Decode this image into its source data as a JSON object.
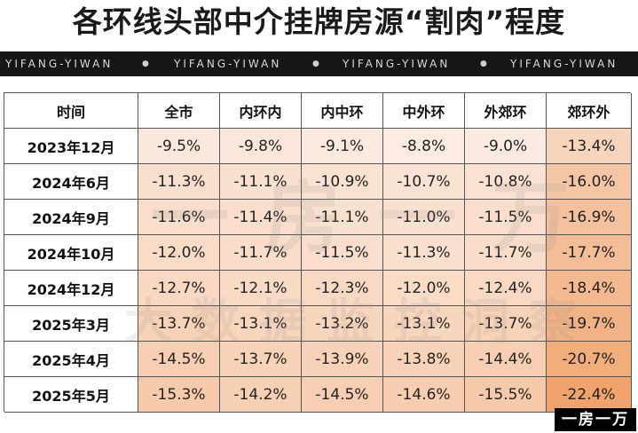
{
  "title": "各环线头部中介挂牌房源“割肉”程度",
  "band_text": "YIFANG-YIWAN",
  "watermark": {
    "line1": "一房一万",
    "line2": "大数据监控洞察"
  },
  "logo_text": "一房一万",
  "colors": {
    "light": "#fcece2",
    "dark": "#f0a46c",
    "outer": "#ee9556"
  },
  "chart_data": {
    "type": "table",
    "title": "各环线头部中介挂牌房源“割肉”程度",
    "corner_label": "时间",
    "columns": [
      "全市",
      "内环内",
      "内中环",
      "中外环",
      "外郊环",
      "郊环外"
    ],
    "rows": [
      {
        "label": "2023年12月",
        "values": [
          "-9.5%",
          "-9.8%",
          "-9.1%",
          "-8.8%",
          "-9.0%",
          "-13.4%"
        ]
      },
      {
        "label": "2024年6月",
        "values": [
          "-11.3%",
          "-11.1%",
          "-10.9%",
          "-10.7%",
          "-10.8%",
          "-16.0%"
        ]
      },
      {
        "label": "2024年9月",
        "values": [
          "-11.6%",
          "-11.4%",
          "-11.1%",
          "-11.0%",
          "-11.5%",
          "-16.9%"
        ]
      },
      {
        "label": "2024年10月",
        "values": [
          "-12.0%",
          "-11.7%",
          "-11.5%",
          "-11.3%",
          "-11.7%",
          "-17.7%"
        ]
      },
      {
        "label": "2024年12月",
        "values": [
          "-12.7%",
          "-12.1%",
          "-12.3%",
          "-12.0%",
          "-12.4%",
          "-18.4%"
        ]
      },
      {
        "label": "2025年3月",
        "values": [
          "-13.7%",
          "-13.1%",
          "-13.2%",
          "-13.1%",
          "-13.7%",
          "-19.7%"
        ]
      },
      {
        "label": "2025年4月",
        "values": [
          "-14.5%",
          "-13.7%",
          "-13.9%",
          "-13.8%",
          "-14.4%",
          "-20.7%"
        ]
      },
      {
        "label": "2025年5月",
        "values": [
          "-15.3%",
          "-14.2%",
          "-14.5%",
          "-14.6%",
          "-15.5%",
          "-22.4%"
        ]
      }
    ]
  }
}
